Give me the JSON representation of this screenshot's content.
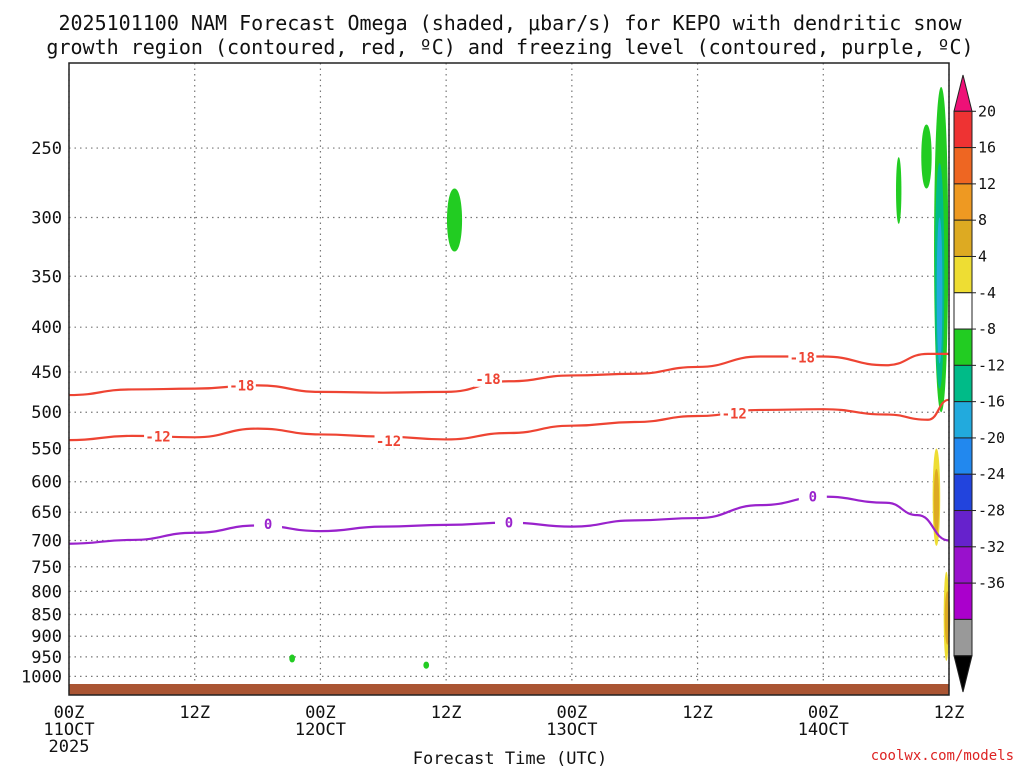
{
  "chart_data": {
    "type": "time-height",
    "title_lines": [
      "2025101100 NAM Forecast Omega (shaded, μbar/s) for KEPO with dendritic snow",
      "growth region (contoured, red, ºC) and freezing level (contoured, purple, ºC)"
    ],
    "xlabel": "Forecast Time (UTC)",
    "ylabel": "",
    "y_scale": "log-pressure",
    "y_reversed": true,
    "ylim": [
      1050,
      200
    ],
    "y_ticks": [
      250,
      300,
      350,
      400,
      450,
      500,
      550,
      600,
      650,
      700,
      750,
      800,
      850,
      900,
      950,
      1000
    ],
    "xlim": [
      "2025-10-11T00Z",
      "2025-10-14T12Z"
    ],
    "x_ticks": [
      {
        "t": "2025-10-11T00Z",
        "line1": "00Z",
        "line2": "11OCT",
        "line3": "2025"
      },
      {
        "t": "2025-10-11T12Z",
        "line1": "12Z",
        "line2": "",
        "line3": ""
      },
      {
        "t": "2025-10-12T00Z",
        "line1": "00Z",
        "line2": "12OCT",
        "line3": ""
      },
      {
        "t": "2025-10-12T12Z",
        "line1": "12Z",
        "line2": "",
        "line3": ""
      },
      {
        "t": "2025-10-13T00Z",
        "line1": "00Z",
        "line2": "13OCT",
        "line3": ""
      },
      {
        "t": "2025-10-13T12Z",
        "line1": "12Z",
        "line2": "",
        "line3": ""
      },
      {
        "t": "2025-10-14T00Z",
        "line1": "00Z",
        "line2": "14OCT",
        "line3": ""
      },
      {
        "t": "2025-10-14T12Z",
        "line1": "12Z",
        "line2": "",
        "line3": ""
      }
    ],
    "grid": true,
    "contours": [
      {
        "name": "-18",
        "color": "#ee4433",
        "x_hours": [
          0,
          6,
          12,
          18,
          24,
          30,
          36,
          42,
          48,
          54,
          60,
          66,
          72,
          78,
          82,
          84
        ],
        "y_hpa": [
          478,
          471,
          470,
          466,
          474,
          475,
          474,
          461,
          454,
          452,
          444,
          432,
          432,
          442,
          429,
          429
        ],
        "labels": [
          {
            "x_hour": 16.5,
            "y_hpa": 466
          },
          {
            "x_hour": 40,
            "y_hpa": 458
          },
          {
            "x_hour": 70,
            "y_hpa": 433
          }
        ]
      },
      {
        "name": "-12",
        "color": "#ee4433",
        "x_hours": [
          0,
          6,
          12,
          18,
          24,
          30,
          36,
          42,
          48,
          54,
          60,
          66,
          72,
          78,
          82,
          84
        ],
        "y_hpa": [
          538,
          532,
          534,
          522,
          530,
          533,
          537,
          528,
          518,
          513,
          505,
          497,
          496,
          503,
          510,
          484
        ],
        "labels": [
          {
            "x_hour": 8.5,
            "y_hpa": 533
          },
          {
            "x_hour": 30.5,
            "y_hpa": 539
          },
          {
            "x_hour": 63.5,
            "y_hpa": 502
          }
        ]
      },
      {
        "name": "0",
        "color": "#9922cc",
        "x_hours": [
          0,
          6,
          12,
          18,
          24,
          30,
          36,
          42,
          48,
          54,
          60,
          66,
          72,
          78,
          81,
          84
        ],
        "y_hpa": [
          706,
          699,
          686,
          673,
          683,
          675,
          672,
          668,
          675,
          664,
          660,
          638,
          624,
          634,
          655,
          700
        ],
        "labels": [
          {
            "x_hour": 19,
            "y_hpa": 670
          },
          {
            "x_hour": 42,
            "y_hpa": 668
          },
          {
            "x_hour": 71,
            "y_hpa": 624
          }
        ]
      }
    ],
    "shaded_regions": [
      {
        "color": "#22cc22",
        "x_hours": [
          36.0,
          36.6,
          37.6
        ],
        "y_hpa_top": 278,
        "y_hpa_bottom": 328
      },
      {
        "color": "#22cc22",
        "x_hours": [
          21.0,
          21.6
        ],
        "y_hpa_top": 944,
        "y_hpa_bottom": 964
      },
      {
        "color": "#22cc22",
        "x_hours": [
          33.8,
          34.4
        ],
        "y_hpa_top": 962,
        "y_hpa_bottom": 980
      },
      {
        "color": "#22cc22",
        "x_hours": [
          79.0,
          79.4
        ],
        "y_hpa_top": 256,
        "y_hpa_bottom": 305
      },
      {
        "color": "#22cc22",
        "x_hours": [
          81.3,
          82.4
        ],
        "y_hpa_top": 235,
        "y_hpa_bottom": 278
      },
      {
        "color": "#22cc22",
        "x_hours": [
          82.5,
          84.0
        ],
        "y_hpa_top": 213,
        "y_hpa_bottom": 500
      },
      {
        "color": "#00bb88",
        "x_hours": [
          82.6,
          83.6
        ],
        "y_hpa_top": 260,
        "y_hpa_bottom": 470
      },
      {
        "color": "#22aadd",
        "x_hours": [
          82.8,
          83.4
        ],
        "y_hpa_top": 300,
        "y_hpa_bottom": 440
      },
      {
        "color": "#eedd33",
        "x_hours": [
          82.4,
          83.2
        ],
        "y_hpa_top": 550,
        "y_hpa_bottom": 710
      },
      {
        "color": "#ddaa22",
        "x_hours": [
          82.6,
          83.0
        ],
        "y_hpa_top": 580,
        "y_hpa_bottom": 690
      },
      {
        "color": "#eedd33",
        "x_hours": [
          83.5,
          84.0
        ],
        "y_hpa_top": 760,
        "y_hpa_bottom": 960
      },
      {
        "color": "#ddaa22",
        "x_hours": [
          83.7,
          84.0
        ],
        "y_hpa_top": 800,
        "y_hpa_bottom": 920
      }
    ],
    "terrain": {
      "color": "#aa5533",
      "surface_hpa": 1020
    },
    "colorbar": {
      "labels": [
        "20",
        "16",
        "12",
        "8",
        "4",
        "-4",
        "-8",
        "-12",
        "-16",
        "-20",
        "-24",
        "-28",
        "-32",
        "-36"
      ],
      "bins": [
        "#ee1177",
        "#ee3333",
        "#ee6622",
        "#ee9922",
        "#ddaa22",
        "#eedd33",
        "#ffffff",
        "#22cc22",
        "#00bb88",
        "#22aadd",
        "#2288ee",
        "#2244dd",
        "#6622cc",
        "#9911cc",
        "#aa00cc",
        "#999999",
        "#000000"
      ]
    }
  },
  "credit": "coolwx.com/models"
}
